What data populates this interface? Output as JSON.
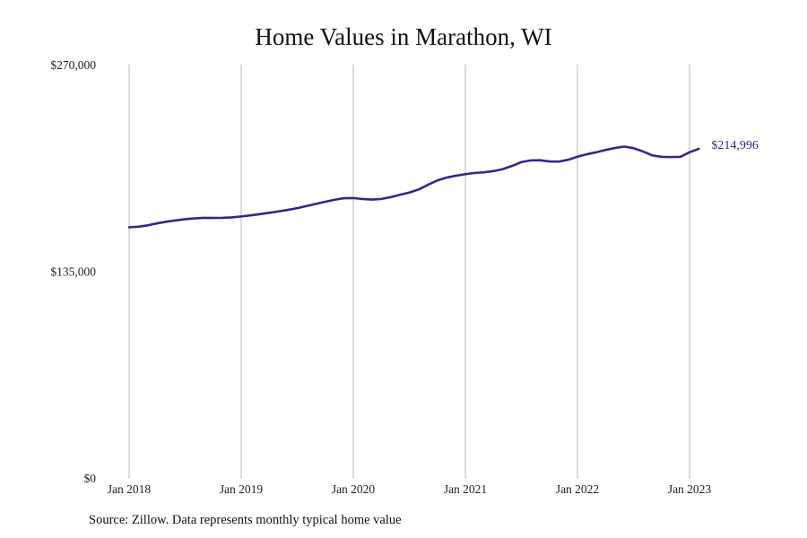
{
  "chart_data": {
    "type": "line",
    "title": "Home Values in Marathon, WI",
    "xlabel": "",
    "ylabel": "",
    "ylim": [
      0,
      270000
    ],
    "y_ticks": [
      {
        "value": 0,
        "label": "$0"
      },
      {
        "value": 135000,
        "label": "$135,000"
      },
      {
        "value": 270000,
        "label": "$270,000"
      }
    ],
    "x_ticks": [
      {
        "value": "2018-01",
        "label": "Jan 2018"
      },
      {
        "value": "2019-01",
        "label": "Jan 2019"
      },
      {
        "value": "2020-01",
        "label": "Jan 2020"
      },
      {
        "value": "2021-01",
        "label": "Jan 2021"
      },
      {
        "value": "2022-01",
        "label": "Jan 2022"
      },
      {
        "value": "2023-01",
        "label": "Jan 2023"
      }
    ],
    "x_range": [
      "2018-01",
      "2023-02"
    ],
    "grid": "vertical at x ticks",
    "line_color": "#2e2a8a",
    "end_label": "$214,996",
    "series": [
      {
        "name": "",
        "x": [
          "2018-01",
          "2018-02",
          "2018-03",
          "2018-04",
          "2018-05",
          "2018-06",
          "2018-07",
          "2018-08",
          "2018-09",
          "2018-10",
          "2018-11",
          "2018-12",
          "2019-01",
          "2019-02",
          "2019-03",
          "2019-04",
          "2019-05",
          "2019-06",
          "2019-07",
          "2019-08",
          "2019-09",
          "2019-10",
          "2019-11",
          "2019-12",
          "2020-01",
          "2020-02",
          "2020-03",
          "2020-04",
          "2020-05",
          "2020-06",
          "2020-07",
          "2020-08",
          "2020-09",
          "2020-10",
          "2020-11",
          "2020-12",
          "2021-01",
          "2021-02",
          "2021-03",
          "2021-04",
          "2021-05",
          "2021-06",
          "2021-07",
          "2021-08",
          "2021-09",
          "2021-10",
          "2021-11",
          "2021-12",
          "2022-01",
          "2022-02",
          "2022-03",
          "2022-04",
          "2022-05",
          "2022-06",
          "2022-07",
          "2022-08",
          "2022-09",
          "2022-10",
          "2022-11",
          "2022-12",
          "2023-01",
          "2023-02"
        ],
        "values": [
          163700,
          164100,
          165000,
          166300,
          167400,
          168200,
          169000,
          169500,
          169900,
          169800,
          169900,
          170200,
          170800,
          171500,
          172300,
          173200,
          174100,
          175100,
          176200,
          177600,
          179000,
          180400,
          181700,
          182700,
          182800,
          182200,
          181800,
          182200,
          183400,
          184900,
          186400,
          188400,
          191500,
          194300,
          196200,
          197400,
          198400,
          199200,
          199600,
          200400,
          201700,
          203800,
          206300,
          207400,
          207500,
          206700,
          206600,
          207800,
          209800,
          211400,
          212700,
          214200,
          215500,
          216400,
          215400,
          213300,
          210700,
          209700,
          209600,
          209700,
          212700,
          214996
        ]
      }
    ]
  },
  "source": "Source: Zillow. Data represents monthly typical home value"
}
